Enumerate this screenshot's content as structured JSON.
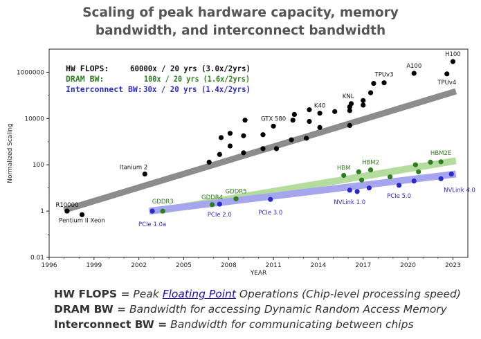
{
  "header": {
    "title_line1": "Scaling of peak hardware capacity, memory",
    "title_line2": "bandwidth, and interconnect bandwidth"
  },
  "chart_data": {
    "type": "scatter",
    "xlabel": "YEAR",
    "ylabel": "Normalized Scaling",
    "xlim": [
      1996,
      2024
    ],
    "ylim": [
      0.01,
      10000000
    ],
    "yscale": "log",
    "x_ticks": [
      1996,
      1999,
      2002,
      2005,
      2008,
      2011,
      2014,
      2017,
      2020,
      2023
    ],
    "y_ticks": [
      {
        "value": 0.01,
        "label": "0.01"
      },
      {
        "value": 1,
        "label": "1"
      },
      {
        "value": 100,
        "label": "100"
      },
      {
        "value": 10000,
        "label": "10000"
      },
      {
        "value": 1000000,
        "label": "1000000"
      }
    ],
    "legend": {
      "placement": "top-left",
      "entries": [
        {
          "name": "HW FLOPS:",
          "stat": "60000x / 20 yrs (3.0x/2yrs)",
          "color": "#111111"
        },
        {
          "name": "DRAM BW:",
          "stat": "100x / 20 yrs (1.6x/2yrs)",
          "color": "#2e7d1e"
        },
        {
          "name": "Interconnect BW:",
          "stat": "30x / 20 yrs (1.4x/2yrs)",
          "color": "#2a2acc"
        }
      ]
    },
    "series": [
      {
        "name": "HW FLOPS",
        "color": "#000000",
        "trend_color": "#8c8c8c",
        "trend": {
          "x": [
            1997,
            2023.2
          ],
          "y": [
            1.1,
            150000
          ]
        },
        "points": [
          {
            "x": 1997.2,
            "y": 1
          },
          {
            "x": 1998.2,
            "y": 0.7
          },
          {
            "x": 2002.4,
            "y": 40
          },
          {
            "x": 2006.7,
            "y": 130
          },
          {
            "x": 2007.4,
            "y": 280
          },
          {
            "x": 2007.5,
            "y": 1500
          },
          {
            "x": 2008.1,
            "y": 650
          },
          {
            "x": 2008.1,
            "y": 2300
          },
          {
            "x": 2009.0,
            "y": 330
          },
          {
            "x": 2009.0,
            "y": 1800
          },
          {
            "x": 2009.1,
            "y": 8500
          },
          {
            "x": 2010.3,
            "y": 500
          },
          {
            "x": 2010.3,
            "y": 2000
          },
          {
            "x": 2011.0,
            "y": 4700
          },
          {
            "x": 2011.2,
            "y": 500
          },
          {
            "x": 2012.2,
            "y": 1200
          },
          {
            "x": 2012.3,
            "y": 8500
          },
          {
            "x": 2012.4,
            "y": 15000
          },
          {
            "x": 2013.2,
            "y": 1400
          },
          {
            "x": 2013.4,
            "y": 7500
          },
          {
            "x": 2013.4,
            "y": 24000
          },
          {
            "x": 2014.1,
            "y": 4100
          },
          {
            "x": 2014.1,
            "y": 17000
          },
          {
            "x": 2015.1,
            "y": 20000
          },
          {
            "x": 2016.1,
            "y": 5000
          },
          {
            "x": 2016.1,
            "y": 22000
          },
          {
            "x": 2016.1,
            "y": 32000
          },
          {
            "x": 2016.2,
            "y": 44000
          },
          {
            "x": 2017.0,
            "y": 38000
          },
          {
            "x": 2017.0,
            "y": 60000
          },
          {
            "x": 2017.5,
            "y": 130000
          },
          {
            "x": 2017.7,
            "y": 330000
          },
          {
            "x": 2018.4,
            "y": 350000
          },
          {
            "x": 2020.4,
            "y": 900000
          },
          {
            "x": 2022.6,
            "y": 850000
          },
          {
            "x": 2023.0,
            "y": 2900000
          }
        ],
        "labels": [
          {
            "text": "R10000",
            "x": 1997.2,
            "y": 1,
            "anchor": "middle",
            "dy": -6
          },
          {
            "text": "Pentium II Xeon",
            "x": 1998.2,
            "y": 0.7,
            "anchor": "middle",
            "dy": 11
          },
          {
            "text": "Itanium 2",
            "x": 2002.4,
            "y": 40,
            "anchor": "end",
            "dy": -7
          },
          {
            "text": "GTX 580",
            "x": 2011.0,
            "y": 4700,
            "anchor": "middle",
            "dy": -8
          },
          {
            "text": "K40",
            "x": 2014.1,
            "y": 17000,
            "anchor": "middle",
            "dy": -8
          },
          {
            "text": "KNL",
            "x": 2016.2,
            "y": 44000,
            "anchor": "end",
            "dy": -8
          },
          {
            "text": "TPUv3",
            "x": 2018.4,
            "y": 350000,
            "anchor": "middle",
            "dy": -9
          },
          {
            "text": "A100",
            "x": 2020.4,
            "y": 900000,
            "anchor": "middle",
            "dy": -8
          },
          {
            "text": "H100",
            "x": 2023.0,
            "y": 2900000,
            "anchor": "middle",
            "dy": -8
          },
          {
            "text": "TPUv4",
            "x": 2022.6,
            "y": 850000,
            "anchor": "middle",
            "dy": 15
          }
        ]
      },
      {
        "name": "DRAM BW",
        "color": "#2e7d1e",
        "trend_color": "#b3dc9e",
        "trend": {
          "x": [
            2003.4,
            2023.2
          ],
          "y": [
            1.05,
            150
          ]
        },
        "points": [
          {
            "x": 2003.6,
            "y": 1
          },
          {
            "x": 2006.9,
            "y": 1.9
          },
          {
            "x": 2008.5,
            "y": 3.4
          },
          {
            "x": 2015.7,
            "y": 35
          },
          {
            "x": 2016.7,
            "y": 50
          },
          {
            "x": 2016.9,
            "y": 22
          },
          {
            "x": 2017.5,
            "y": 60
          },
          {
            "x": 2018.8,
            "y": 30
          },
          {
            "x": 2020.5,
            "y": 100
          },
          {
            "x": 2020.7,
            "y": 50
          },
          {
            "x": 2021.5,
            "y": 130
          },
          {
            "x": 2022.2,
            "y": 135
          }
        ],
        "labels": [
          {
            "text": "GDDR3",
            "x": 2003.6,
            "y": 1,
            "anchor": "middle",
            "dy": -11
          },
          {
            "text": "GDDR4",
            "x": 2006.9,
            "y": 1.9,
            "anchor": "middle",
            "dy": -8
          },
          {
            "text": "GDDR5",
            "x": 2008.5,
            "y": 3.4,
            "anchor": "middle",
            "dy": -8
          },
          {
            "text": "HBM",
            "x": 2015.7,
            "y": 35,
            "anchor": "middle",
            "dy": -8
          },
          {
            "text": "HBM2",
            "x": 2017.5,
            "y": 60,
            "anchor": "middle",
            "dy": -8
          },
          {
            "text": "HBM2E",
            "x": 2022.2,
            "y": 135,
            "anchor": "middle",
            "dy": -10
          }
        ]
      },
      {
        "name": "Interconnect BW",
        "color": "#2a2acc",
        "trend_color": "#a6a6ef",
        "trend": {
          "x": [
            2002.7,
            2023.2
          ],
          "y": [
            1.0,
            40
          ]
        },
        "points": [
          {
            "x": 2002.9,
            "y": 1
          },
          {
            "x": 2007.4,
            "y": 2
          },
          {
            "x": 2010.8,
            "y": 3.2
          },
          {
            "x": 2016.1,
            "y": 8
          },
          {
            "x": 2016.6,
            "y": 7
          },
          {
            "x": 2017.4,
            "y": 10
          },
          {
            "x": 2019.4,
            "y": 13
          },
          {
            "x": 2020.4,
            "y": 20
          },
          {
            "x": 2022.2,
            "y": 25
          },
          {
            "x": 2022.9,
            "y": 40
          }
        ],
        "labels": [
          {
            "text": "PCIe 1.0a",
            "x": 2002.9,
            "y": 1,
            "anchor": "middle",
            "dy": 22
          },
          {
            "text": "PCIe 2.0",
            "x": 2007.4,
            "y": 2,
            "anchor": "middle",
            "dy": 18
          },
          {
            "text": "PCIe 3.0",
            "x": 2010.8,
            "y": 3.2,
            "anchor": "middle",
            "dy": 22
          },
          {
            "text": "NVLink 1.0",
            "x": 2016.1,
            "y": 8,
            "anchor": "middle",
            "dy": 20
          },
          {
            "text": "PCIe 5.0",
            "x": 2019.4,
            "y": 13,
            "anchor": "middle",
            "dy": 18
          },
          {
            "text": "NVLink 4.0",
            "x": 2022.2,
            "y": 25,
            "anchor": "start",
            "dy": 19
          }
        ]
      }
    ]
  },
  "definitions": [
    {
      "term": "HW FLOPS =",
      "pre": "Peak",
      "link": "Floating Point",
      "post": "Operations (Chip-level processing speed)"
    },
    {
      "term": "DRAM BW =",
      "pre": "Bandwidth for accessing Dynamic Random Access Memory",
      "link": "",
      "post": ""
    },
    {
      "term": "Interconnect BW =",
      "pre": "Bandwidth for communicating between chips",
      "link": "",
      "post": ""
    }
  ]
}
